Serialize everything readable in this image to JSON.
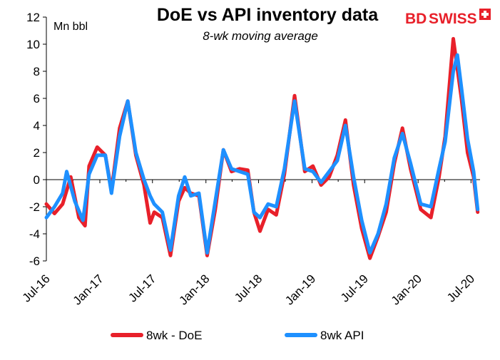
{
  "chart_data": {
    "type": "line",
    "title": "DoE vs API inventory data",
    "subtitle": "8-wk moving average",
    "ylabel": "Mn bbl",
    "xlabel": "",
    "ylim": [
      -6,
      12
    ],
    "yticks": [
      -6,
      -4,
      -2,
      0,
      2,
      4,
      6,
      8,
      10,
      12
    ],
    "xlim": [
      "2016-07-01",
      "2020-08-01"
    ],
    "xticks": [
      "Jul-16",
      "Jan-17",
      "Jul-17",
      "Jan-18",
      "Jul-18",
      "Jan-19",
      "Jul-19",
      "Jan-20",
      "Jul-20"
    ],
    "xtick_dates": [
      "2016-07-01",
      "2017-01-01",
      "2017-07-01",
      "2018-01-01",
      "2018-07-01",
      "2019-01-01",
      "2019-07-01",
      "2020-01-01",
      "2020-07-01"
    ],
    "grid": false,
    "legend": "bottom",
    "series": [
      {
        "name": "8wk - DoE",
        "color": "#e8202a",
        "points": [
          [
            "2016-07-01",
            -1.8
          ],
          [
            "2016-07-29",
            -2.5
          ],
          [
            "2016-08-26",
            -1.8
          ],
          [
            "2016-09-23",
            0.2
          ],
          [
            "2016-10-21",
            -2.8
          ],
          [
            "2016-11-11",
            -3.4
          ],
          [
            "2016-11-25",
            1.0
          ],
          [
            "2016-12-23",
            2.4
          ],
          [
            "2017-01-20",
            1.8
          ],
          [
            "2017-02-10",
            -0.8
          ],
          [
            "2017-03-10",
            3.8
          ],
          [
            "2017-04-07",
            5.8
          ],
          [
            "2017-05-05",
            1.8
          ],
          [
            "2017-06-02",
            -0.4
          ],
          [
            "2017-06-23",
            -3.2
          ],
          [
            "2017-07-07",
            -2.4
          ],
          [
            "2017-08-04",
            -2.8
          ],
          [
            "2017-09-01",
            -5.6
          ],
          [
            "2017-09-29",
            -1.6
          ],
          [
            "2017-10-20",
            -0.6
          ],
          [
            "2017-11-10",
            -1.0
          ],
          [
            "2017-12-08",
            -1.2
          ],
          [
            "2018-01-05",
            -5.6
          ],
          [
            "2018-02-02",
            -2.2
          ],
          [
            "2018-03-02",
            2.2
          ],
          [
            "2018-03-30",
            0.6
          ],
          [
            "2018-04-27",
            0.8
          ],
          [
            "2018-05-25",
            0.7
          ],
          [
            "2018-06-15",
            -2.4
          ],
          [
            "2018-07-06",
            -3.8
          ],
          [
            "2018-08-03",
            -2.2
          ],
          [
            "2018-08-31",
            -2.6
          ],
          [
            "2018-09-28",
            0.4
          ],
          [
            "2018-11-02",
            6.2
          ],
          [
            "2018-12-07",
            0.6
          ],
          [
            "2019-01-04",
            1.0
          ],
          [
            "2019-02-01",
            -0.4
          ],
          [
            "2019-03-01",
            0.2
          ],
          [
            "2019-03-29",
            1.8
          ],
          [
            "2019-04-26",
            4.4
          ],
          [
            "2019-05-24",
            -0.4
          ],
          [
            "2019-06-21",
            -3.6
          ],
          [
            "2019-07-19",
            -5.8
          ],
          [
            "2019-08-16",
            -4.2
          ],
          [
            "2019-09-13",
            -2.4
          ],
          [
            "2019-10-11",
            1.2
          ],
          [
            "2019-11-08",
            3.8
          ],
          [
            "2019-12-06",
            0.8
          ],
          [
            "2020-01-10",
            -2.2
          ],
          [
            "2020-02-14",
            -2.8
          ],
          [
            "2020-03-13",
            0.2
          ],
          [
            "2020-04-03",
            3.2
          ],
          [
            "2020-05-01",
            10.4
          ],
          [
            "2020-05-29",
            6.0
          ],
          [
            "2020-06-19",
            2.0
          ],
          [
            "2020-07-10",
            0.2
          ],
          [
            "2020-07-24",
            -2.4
          ]
        ]
      },
      {
        "name": "8wk API",
        "color": "#1e90ff",
        "points": [
          [
            "2016-07-01",
            -2.8
          ],
          [
            "2016-07-29",
            -2.0
          ],
          [
            "2016-08-26",
            -1.0
          ],
          [
            "2016-09-09",
            0.6
          ],
          [
            "2016-10-07",
            -1.6
          ],
          [
            "2016-11-04",
            -3.0
          ],
          [
            "2016-11-25",
            0.4
          ],
          [
            "2016-12-23",
            1.8
          ],
          [
            "2017-01-20",
            1.8
          ],
          [
            "2017-02-10",
            -1.0
          ],
          [
            "2017-03-10",
            3.2
          ],
          [
            "2017-04-07",
            5.8
          ],
          [
            "2017-05-05",
            2.0
          ],
          [
            "2017-06-02",
            0.0
          ],
          [
            "2017-06-23",
            -1.2
          ],
          [
            "2017-07-07",
            -1.8
          ],
          [
            "2017-08-04",
            -2.4
          ],
          [
            "2017-09-01",
            -5.2
          ],
          [
            "2017-09-29",
            -1.2
          ],
          [
            "2017-10-20",
            0.2
          ],
          [
            "2017-11-10",
            -1.2
          ],
          [
            "2017-12-08",
            -1.0
          ],
          [
            "2018-01-05",
            -5.4
          ],
          [
            "2018-02-02",
            -1.6
          ],
          [
            "2018-03-02",
            2.2
          ],
          [
            "2018-03-30",
            0.8
          ],
          [
            "2018-04-27",
            0.6
          ],
          [
            "2018-05-25",
            0.4
          ],
          [
            "2018-06-15",
            -2.4
          ],
          [
            "2018-07-06",
            -2.8
          ],
          [
            "2018-08-03",
            -1.8
          ],
          [
            "2018-08-31",
            -2.0
          ],
          [
            "2018-09-28",
            0.8
          ],
          [
            "2018-11-02",
            5.8
          ],
          [
            "2018-12-07",
            0.8
          ],
          [
            "2019-01-04",
            0.6
          ],
          [
            "2019-02-01",
            -0.2
          ],
          [
            "2019-03-01",
            0.6
          ],
          [
            "2019-03-29",
            1.4
          ],
          [
            "2019-04-26",
            4.0
          ],
          [
            "2019-05-24",
            0.2
          ],
          [
            "2019-06-21",
            -3.0
          ],
          [
            "2019-07-19",
            -5.4
          ],
          [
            "2019-08-16",
            -4.0
          ],
          [
            "2019-09-13",
            -1.8
          ],
          [
            "2019-10-11",
            1.6
          ],
          [
            "2019-11-08",
            3.4
          ],
          [
            "2019-12-06",
            1.2
          ],
          [
            "2020-01-10",
            -1.8
          ],
          [
            "2020-02-14",
            -2.0
          ],
          [
            "2020-03-13",
            0.8
          ],
          [
            "2020-04-03",
            2.8
          ],
          [
            "2020-05-01",
            8.0
          ],
          [
            "2020-05-15",
            9.2
          ],
          [
            "2020-05-29",
            6.8
          ],
          [
            "2020-06-19",
            3.0
          ],
          [
            "2020-07-10",
            0.6
          ],
          [
            "2020-07-24",
            -2.2
          ]
        ]
      }
    ]
  },
  "logo": {
    "text_bd": "BD",
    "text_swiss": "SWISS",
    "color": "#e8202a"
  }
}
